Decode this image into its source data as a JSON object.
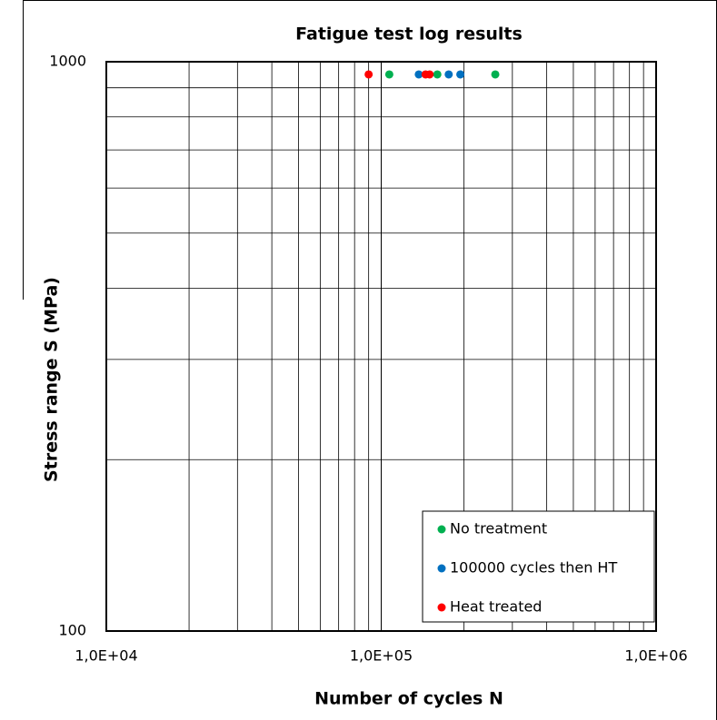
{
  "chart_data": {
    "type": "scatter",
    "title": "Fatigue test log results",
    "x_label": "Number of cycles N",
    "y_label": "Stress range S (MPa)",
    "x_log": true,
    "y_log": true,
    "xlim": [
      10000,
      1000000
    ],
    "ylim": [
      100,
      1000
    ],
    "xticks": [
      {
        "value": 10000,
        "label": "1,0E+04"
      },
      {
        "value": 100000,
        "label": "1,0E+05"
      },
      {
        "value": 1000000,
        "label": "1,0E+06"
      }
    ],
    "yticks": [
      100,
      1000
    ],
    "x_minor_ticks": [
      20000,
      30000,
      40000,
      50000,
      60000,
      70000,
      80000,
      90000,
      200000,
      300000,
      400000,
      500000,
      600000,
      700000,
      800000,
      900000
    ],
    "y_minor_ticks": [
      200,
      300,
      400,
      500,
      600,
      700,
      800,
      900
    ],
    "grid": true,
    "legend": "lower right",
    "series": [
      {
        "name": "No treatment",
        "color": "#00b050",
        "x": [
          107000,
          160000,
          260000
        ],
        "values": [
          950,
          950,
          950
        ]
      },
      {
        "name": "100000 cycles then HT",
        "color": "#0070c0",
        "x": [
          137000,
          176000,
          194000
        ],
        "values": [
          950,
          950,
          950
        ]
      },
      {
        "name": "Heat treated",
        "color": "#ff0000",
        "x": [
          90000,
          145000,
          150000
        ],
        "values": [
          950,
          950,
          950
        ]
      }
    ]
  }
}
